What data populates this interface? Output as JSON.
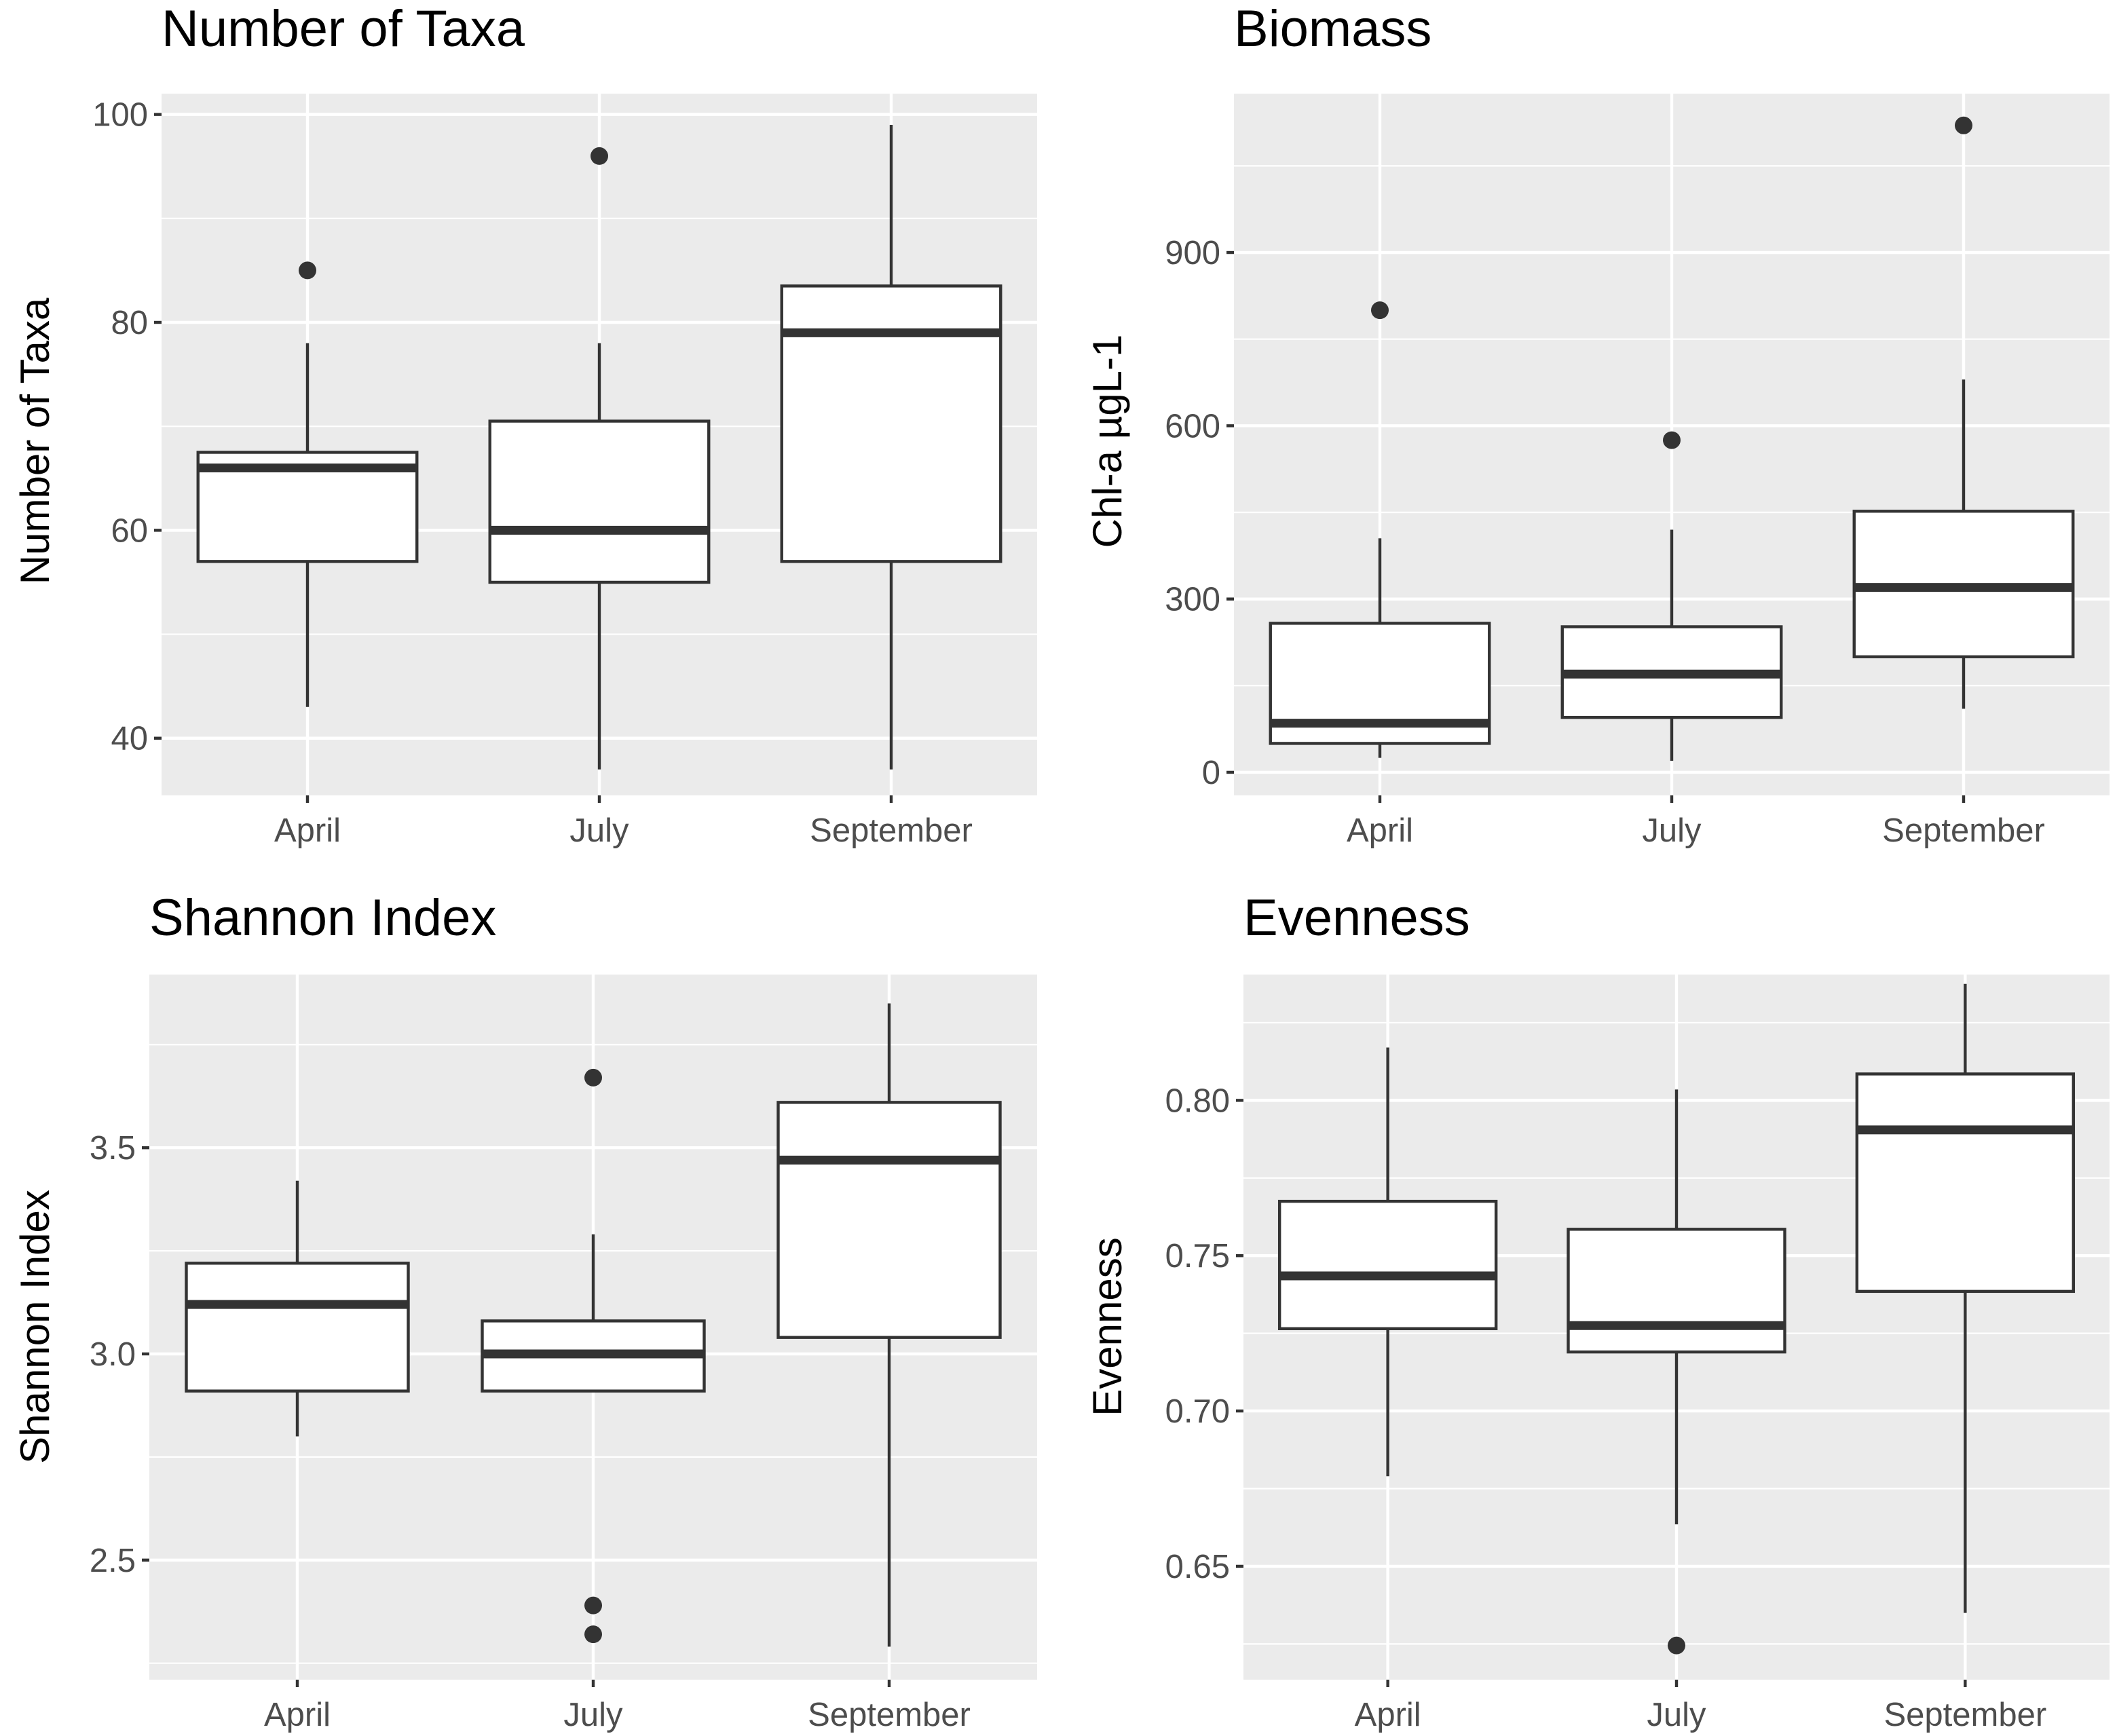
{
  "chart_data": [
    {
      "type": "box",
      "title": "Number of Taxa",
      "xlabel": "",
      "ylabel": "Number of Taxa",
      "categories": [
        "April",
        "July",
        "September"
      ],
      "ylim": [
        34.5,
        102
      ],
      "y_breaks": [
        40,
        60,
        80,
        100
      ],
      "y_tick_labels": [
        "40",
        "60",
        "80",
        "100"
      ],
      "boxes": [
        {
          "category": "April",
          "whisker_low": 43,
          "q1": 57,
          "median": 66,
          "q3": 67.5,
          "whisker_high": 78,
          "outliers": [
            85
          ]
        },
        {
          "category": "July",
          "whisker_low": 37,
          "q1": 55,
          "median": 60,
          "q3": 70.5,
          "whisker_high": 78,
          "outliers": [
            96
          ]
        },
        {
          "category": "September",
          "whisker_low": 37,
          "q1": 57,
          "median": 79,
          "q3": 83.5,
          "whisker_high": 99,
          "outliers": []
        }
      ]
    },
    {
      "type": "box",
      "title": "Biomass",
      "xlabel": "",
      "ylabel": "Chl-a µgL-1",
      "categories": [
        "April",
        "July",
        "September"
      ],
      "ylim": [
        -40,
        1175
      ],
      "y_breaks": [
        0,
        300,
        600,
        900
      ],
      "y_tick_labels": [
        "0",
        "300",
        "600",
        "900"
      ],
      "boxes": [
        {
          "category": "April",
          "whisker_low": 25,
          "q1": 50,
          "median": 85,
          "q3": 258,
          "whisker_high": 405,
          "outliers": [
            800
          ]
        },
        {
          "category": "July",
          "whisker_low": 20,
          "q1": 95,
          "median": 170,
          "q3": 252,
          "whisker_high": 420,
          "outliers": [
            575
          ]
        },
        {
          "category": "September",
          "whisker_low": 110,
          "q1": 200,
          "median": 320,
          "q3": 452,
          "whisker_high": 680,
          "outliers": [
            1120
          ]
        }
      ]
    },
    {
      "type": "box",
      "title": "Shannon Index",
      "xlabel": "",
      "ylabel": "Shannon Index",
      "categories": [
        "April",
        "July",
        "September"
      ],
      "ylim": [
        2.21,
        3.92
      ],
      "y_breaks": [
        2.5,
        3.0,
        3.5
      ],
      "y_tick_labels": [
        "2.5",
        "3.0",
        "3.5"
      ],
      "boxes": [
        {
          "category": "April",
          "whisker_low": 2.8,
          "q1": 2.91,
          "median": 3.12,
          "q3": 3.22,
          "whisker_high": 3.42,
          "outliers": []
        },
        {
          "category": "July",
          "whisker_low": 2.91,
          "q1": 2.91,
          "median": 3.0,
          "q3": 3.08,
          "whisker_high": 3.29,
          "outliers": [
            3.67,
            2.39,
            2.32
          ]
        },
        {
          "category": "September",
          "whisker_low": 2.29,
          "q1": 3.04,
          "median": 3.47,
          "q3": 3.61,
          "whisker_high": 3.85,
          "outliers": []
        }
      ]
    },
    {
      "type": "box",
      "title": "Evenness",
      "xlabel": "",
      "ylabel": "Evenness",
      "categories": [
        "April",
        "July",
        "September"
      ],
      "ylim": [
        0.6135,
        0.8405
      ],
      "y_breaks": [
        0.65,
        0.7,
        0.75,
        0.8
      ],
      "y_tick_labels": [
        "0.65",
        "0.70",
        "0.75",
        "0.80"
      ],
      "boxes": [
        {
          "category": "April",
          "whisker_low": 0.679,
          "q1": 0.7265,
          "median": 0.7435,
          "q3": 0.7675,
          "whisker_high": 0.817,
          "outliers": []
        },
        {
          "category": "July",
          "whisker_low": 0.6635,
          "q1": 0.719,
          "median": 0.7275,
          "q3": 0.7585,
          "whisker_high": 0.8035,
          "outliers": [
            0.6245
          ]
        },
        {
          "category": "September",
          "whisker_low": 0.635,
          "q1": 0.7385,
          "median": 0.7905,
          "q3": 0.8085,
          "whisker_high": 0.8375,
          "outliers": []
        }
      ]
    }
  ]
}
